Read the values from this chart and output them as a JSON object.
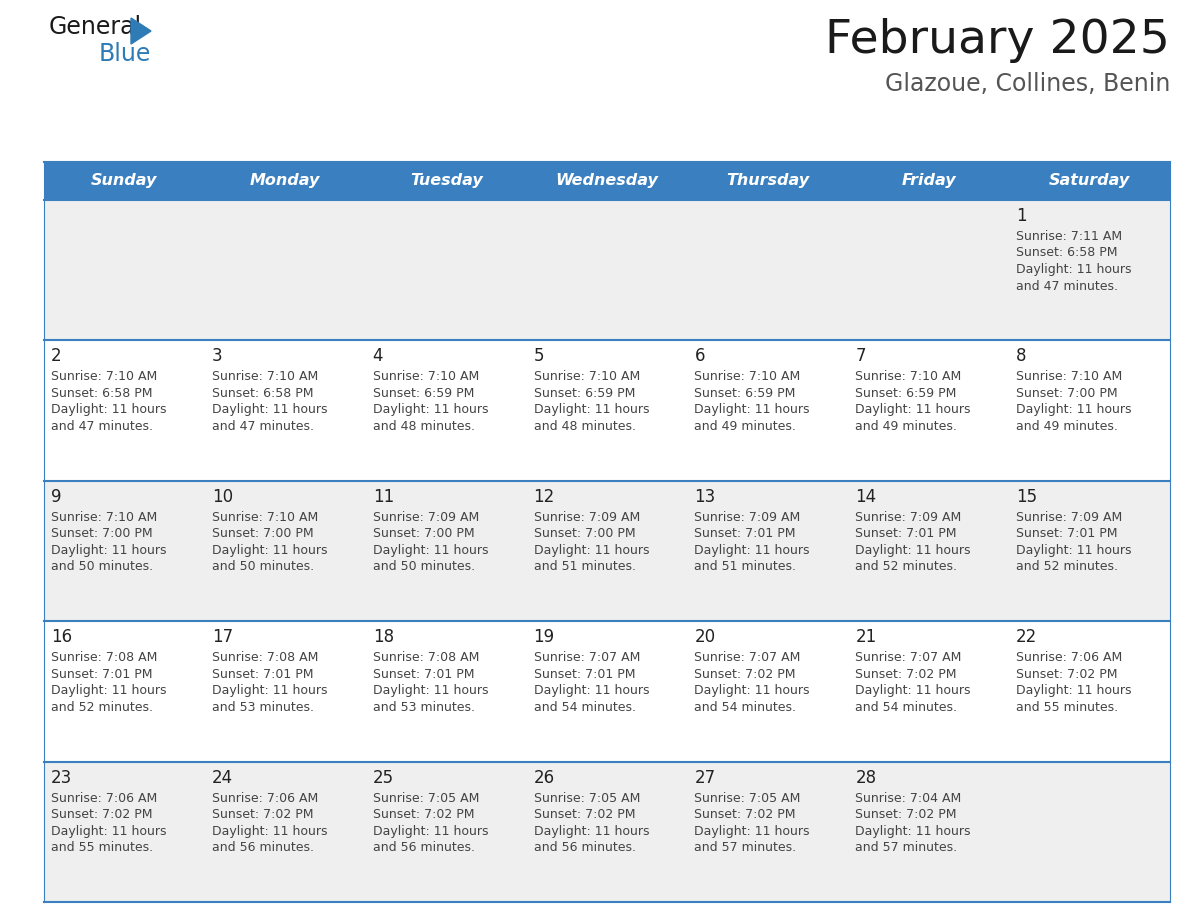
{
  "title": "February 2025",
  "subtitle": "Glazoue, Collines, Benin",
  "days_of_week": [
    "Sunday",
    "Monday",
    "Tuesday",
    "Wednesday",
    "Thursday",
    "Friday",
    "Saturday"
  ],
  "header_bg": "#3A7FBF",
  "header_text_color": "#FFFFFF",
  "row_bg_odd": "#EFEFEF",
  "row_bg_even": "#FFFFFF",
  "border_color": "#3A7FBF",
  "text_color": "#444444",
  "day_num_color": "#222222",
  "calendar_data": [
    [
      null,
      null,
      null,
      null,
      null,
      null,
      {
        "day": "1",
        "sunrise": "7:11 AM",
        "sunset": "6:58 PM",
        "daylight": "11 hours",
        "daylight2": "and 47 minutes."
      }
    ],
    [
      {
        "day": "2",
        "sunrise": "7:10 AM",
        "sunset": "6:58 PM",
        "daylight": "11 hours",
        "daylight2": "and 47 minutes."
      },
      {
        "day": "3",
        "sunrise": "7:10 AM",
        "sunset": "6:58 PM",
        "daylight": "11 hours",
        "daylight2": "and 47 minutes."
      },
      {
        "day": "4",
        "sunrise": "7:10 AM",
        "sunset": "6:59 PM",
        "daylight": "11 hours",
        "daylight2": "and 48 minutes."
      },
      {
        "day": "5",
        "sunrise": "7:10 AM",
        "sunset": "6:59 PM",
        "daylight": "11 hours",
        "daylight2": "and 48 minutes."
      },
      {
        "day": "6",
        "sunrise": "7:10 AM",
        "sunset": "6:59 PM",
        "daylight": "11 hours",
        "daylight2": "and 49 minutes."
      },
      {
        "day": "7",
        "sunrise": "7:10 AM",
        "sunset": "6:59 PM",
        "daylight": "11 hours",
        "daylight2": "and 49 minutes."
      },
      {
        "day": "8",
        "sunrise": "7:10 AM",
        "sunset": "7:00 PM",
        "daylight": "11 hours",
        "daylight2": "and 49 minutes."
      }
    ],
    [
      {
        "day": "9",
        "sunrise": "7:10 AM",
        "sunset": "7:00 PM",
        "daylight": "11 hours",
        "daylight2": "and 50 minutes."
      },
      {
        "day": "10",
        "sunrise": "7:10 AM",
        "sunset": "7:00 PM",
        "daylight": "11 hours",
        "daylight2": "and 50 minutes."
      },
      {
        "day": "11",
        "sunrise": "7:09 AM",
        "sunset": "7:00 PM",
        "daylight": "11 hours",
        "daylight2": "and 50 minutes."
      },
      {
        "day": "12",
        "sunrise": "7:09 AM",
        "sunset": "7:00 PM",
        "daylight": "11 hours",
        "daylight2": "and 51 minutes."
      },
      {
        "day": "13",
        "sunrise": "7:09 AM",
        "sunset": "7:01 PM",
        "daylight": "11 hours",
        "daylight2": "and 51 minutes."
      },
      {
        "day": "14",
        "sunrise": "7:09 AM",
        "sunset": "7:01 PM",
        "daylight": "11 hours",
        "daylight2": "and 52 minutes."
      },
      {
        "day": "15",
        "sunrise": "7:09 AM",
        "sunset": "7:01 PM",
        "daylight": "11 hours",
        "daylight2": "and 52 minutes."
      }
    ],
    [
      {
        "day": "16",
        "sunrise": "7:08 AM",
        "sunset": "7:01 PM",
        "daylight": "11 hours",
        "daylight2": "and 52 minutes."
      },
      {
        "day": "17",
        "sunrise": "7:08 AM",
        "sunset": "7:01 PM",
        "daylight": "11 hours",
        "daylight2": "and 53 minutes."
      },
      {
        "day": "18",
        "sunrise": "7:08 AM",
        "sunset": "7:01 PM",
        "daylight": "11 hours",
        "daylight2": "and 53 minutes."
      },
      {
        "day": "19",
        "sunrise": "7:07 AM",
        "sunset": "7:01 PM",
        "daylight": "11 hours",
        "daylight2": "and 54 minutes."
      },
      {
        "day": "20",
        "sunrise": "7:07 AM",
        "sunset": "7:02 PM",
        "daylight": "11 hours",
        "daylight2": "and 54 minutes."
      },
      {
        "day": "21",
        "sunrise": "7:07 AM",
        "sunset": "7:02 PM",
        "daylight": "11 hours",
        "daylight2": "and 54 minutes."
      },
      {
        "day": "22",
        "sunrise": "7:06 AM",
        "sunset": "7:02 PM",
        "daylight": "11 hours",
        "daylight2": "and 55 minutes."
      }
    ],
    [
      {
        "day": "23",
        "sunrise": "7:06 AM",
        "sunset": "7:02 PM",
        "daylight": "11 hours",
        "daylight2": "and 55 minutes."
      },
      {
        "day": "24",
        "sunrise": "7:06 AM",
        "sunset": "7:02 PM",
        "daylight": "11 hours",
        "daylight2": "and 56 minutes."
      },
      {
        "day": "25",
        "sunrise": "7:05 AM",
        "sunset": "7:02 PM",
        "daylight": "11 hours",
        "daylight2": "and 56 minutes."
      },
      {
        "day": "26",
        "sunrise": "7:05 AM",
        "sunset": "7:02 PM",
        "daylight": "11 hours",
        "daylight2": "and 56 minutes."
      },
      {
        "day": "27",
        "sunrise": "7:05 AM",
        "sunset": "7:02 PM",
        "daylight": "11 hours",
        "daylight2": "and 57 minutes."
      },
      {
        "day": "28",
        "sunrise": "7:04 AM",
        "sunset": "7:02 PM",
        "daylight": "11 hours",
        "daylight2": "and 57 minutes."
      },
      null
    ]
  ],
  "fig_width": 11.88,
  "fig_height": 9.18,
  "dpi": 100
}
